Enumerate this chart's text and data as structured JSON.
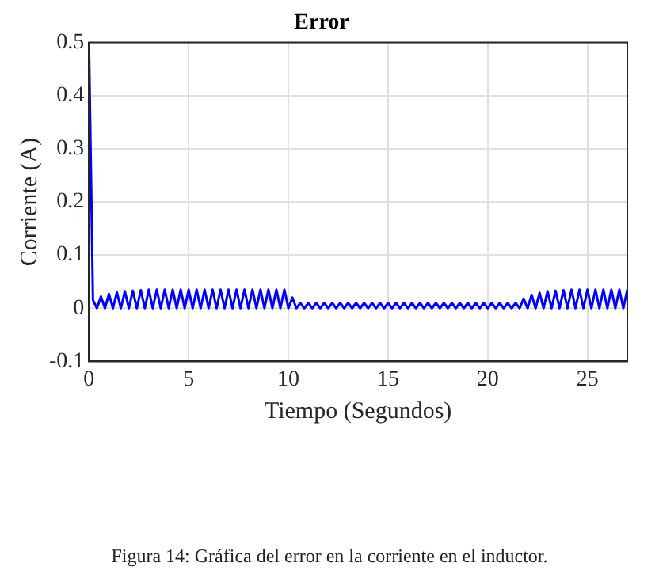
{
  "chart_data": {
    "type": "line",
    "title": "Error",
    "xlabel": "Tiempo (Segundos)",
    "ylabel": "Corriente (A)",
    "annotations": [
      "Figura 14: Gráfica del error en la corriente en el inductor."
    ],
    "x": [
      0,
      0.2,
      0.4,
      0.6,
      0.8,
      1,
      1.2,
      1.4,
      1.6,
      1.8,
      2,
      2.2,
      2.4,
      2.6,
      2.8,
      3,
      3.2,
      3.4,
      3.6,
      3.8,
      4,
      4.2,
      4.4,
      4.6,
      4.8,
      5,
      5.2,
      5.4,
      5.6,
      5.8,
      6,
      6.2,
      6.4,
      6.6,
      6.8,
      7,
      7.2,
      7.4,
      7.6,
      7.8,
      8,
      8.2,
      8.4,
      8.6,
      8.8,
      9,
      9.2,
      9.4,
      9.6,
      9.8,
      10,
      10.2,
      10.4,
      10.6,
      10.8,
      11,
      11.2,
      11.4,
      11.6,
      11.8,
      12,
      12.2,
      12.4,
      12.6,
      12.8,
      13,
      13.2,
      13.4,
      13.6,
      13.8,
      14,
      14.2,
      14.4,
      14.6,
      14.8,
      15,
      15.2,
      15.4,
      15.6,
      15.8,
      16,
      16.2,
      16.4,
      16.6,
      16.8,
      17,
      17.2,
      17.4,
      17.6,
      17.8,
      18,
      18.2,
      18.4,
      18.6,
      18.8,
      19,
      19.2,
      19.4,
      19.6,
      19.8,
      20,
      20.2,
      20.4,
      20.6,
      20.8,
      21,
      21.2,
      21.4,
      21.6,
      21.8,
      22,
      22.2,
      22.4,
      22.6,
      22.8,
      23,
      23.2,
      23.4,
      23.6,
      23.8,
      24,
      24.2,
      24.4,
      24.6,
      24.8,
      25,
      25.2,
      25.4,
      25.6,
      25.8,
      26,
      26.2,
      26.4,
      26.6,
      26.8,
      27
    ],
    "series": [
      {
        "color": "#0000ff",
        "values": [
          0.5,
          0.015,
          0,
          0.022,
          0,
          0.027,
          0,
          0.03,
          0,
          0.032,
          0,
          0.033,
          0,
          0.034,
          0,
          0.035,
          0,
          0.035,
          0,
          0.035,
          0,
          0.035,
          0,
          0.035,
          0,
          0.035,
          0,
          0.035,
          0,
          0.035,
          0,
          0.035,
          0,
          0.035,
          0,
          0.035,
          0,
          0.035,
          0,
          0.035,
          0,
          0.035,
          0,
          0.035,
          0,
          0.035,
          0,
          0.035,
          0,
          0.035,
          0,
          0.02,
          0,
          0.01,
          0,
          0.01,
          0,
          0.01,
          0,
          0.01,
          0,
          0.01,
          0,
          0.01,
          0,
          0.01,
          0,
          0.01,
          0,
          0.01,
          0,
          0.01,
          0,
          0.01,
          0,
          0.01,
          0,
          0.01,
          0,
          0.01,
          0,
          0.01,
          0,
          0.01,
          0,
          0.01,
          0,
          0.01,
          0,
          0.01,
          0,
          0.01,
          0,
          0.01,
          0,
          0.01,
          0,
          0.01,
          0,
          0.01,
          0,
          0.01,
          0,
          0.01,
          0,
          0.01,
          0,
          0.01,
          0,
          0.018,
          0,
          0.025,
          0,
          0.029,
          0,
          0.032,
          0,
          0.033,
          0,
          0.034,
          0,
          0.035,
          0,
          0.035,
          0,
          0.035,
          0,
          0.035,
          0,
          0.035,
          0,
          0.035,
          0,
          0.035,
          0,
          0.035
        ]
      }
    ],
    "xlim": [
      0,
      27
    ],
    "xticks": [
      0,
      5,
      10,
      15,
      20,
      25
    ],
    "ylim": [
      -0.1,
      0.5
    ],
    "yticks": [
      -0.1,
      0,
      0.1,
      0.2,
      0.3,
      0.4,
      0.5
    ],
    "grid": true,
    "marker": "none",
    "line_style": "solid"
  }
}
